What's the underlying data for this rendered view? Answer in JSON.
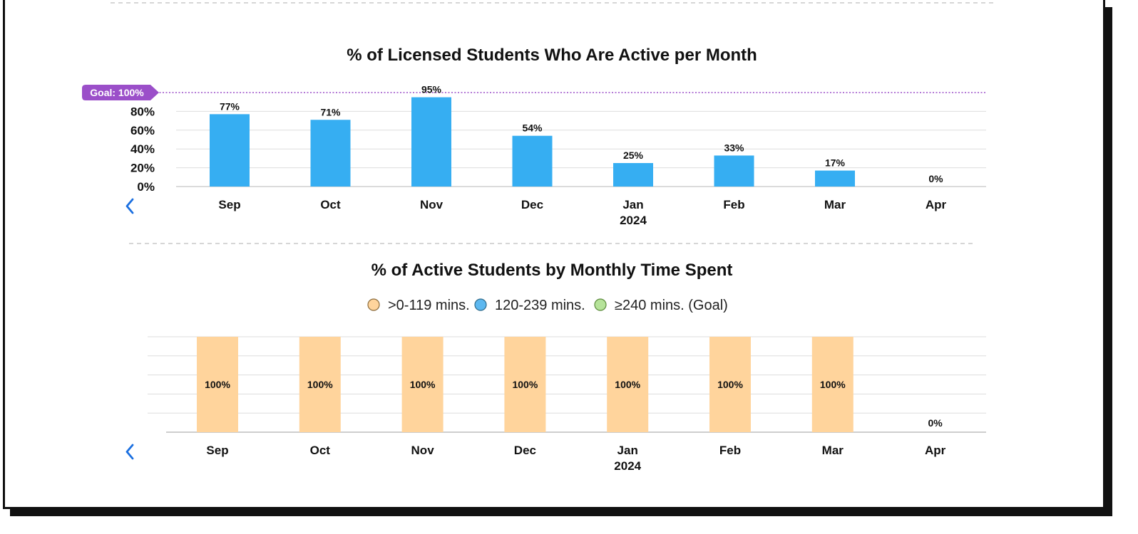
{
  "colors": {
    "bar_blue": "#36aef2",
    "bar_peach": "#ffd49c",
    "goal_purple": "#9b4fc9",
    "nav_blue": "#1a6fe0",
    "grid": "#dddddd",
    "legend_orange": "#ffd49c",
    "legend_blue": "#5db8f0",
    "legend_green": "#b6e39a"
  },
  "icons": {
    "prev": "chevron-left-icon"
  },
  "chart_data": [
    {
      "type": "bar",
      "title": "% of Licensed Students Who Are Active per Month",
      "categories": [
        "Sep",
        "Oct",
        "Nov",
        "Dec",
        "Jan",
        "Feb",
        "Mar",
        "Apr"
      ],
      "year_label": {
        "category": "Jan",
        "text": "2024"
      },
      "values": [
        77,
        71,
        95,
        54,
        25,
        33,
        17,
        0
      ],
      "value_labels": [
        "77%",
        "71%",
        "95%",
        "54%",
        "25%",
        "33%",
        "17%",
        "0%"
      ],
      "y_ticks": [
        "0%",
        "20%",
        "40%",
        "60%",
        "80%"
      ],
      "y_tick_values": [
        0,
        20,
        40,
        60,
        80
      ],
      "ylim": [
        0,
        100
      ],
      "goal": {
        "value": 100,
        "label": "Goal: 100%"
      }
    },
    {
      "type": "bar",
      "stacked": true,
      "title": "% of Active Students by Monthly Time Spent",
      "legend": [
        ">0-119 mins.",
        "120-239 mins.",
        "≥240 mins. (Goal)"
      ],
      "categories": [
        "Sep",
        "Oct",
        "Nov",
        "Dec",
        "Jan",
        "Feb",
        "Mar",
        "Apr"
      ],
      "year_label": {
        "category": "Jan",
        "text": "2024"
      },
      "series": [
        {
          "name": ">0-119 mins.",
          "values": [
            100,
            100,
            100,
            100,
            100,
            100,
            100,
            0
          ]
        },
        {
          "name": "120-239 mins.",
          "values": [
            0,
            0,
            0,
            0,
            0,
            0,
            0,
            0
          ]
        },
        {
          "name": "≥240 mins. (Goal)",
          "values": [
            0,
            0,
            0,
            0,
            0,
            0,
            0,
            0
          ]
        }
      ],
      "value_labels": [
        "100%",
        "100%",
        "100%",
        "100%",
        "100%",
        "100%",
        "100%",
        "0%"
      ],
      "ylim": [
        0,
        100
      ]
    }
  ]
}
